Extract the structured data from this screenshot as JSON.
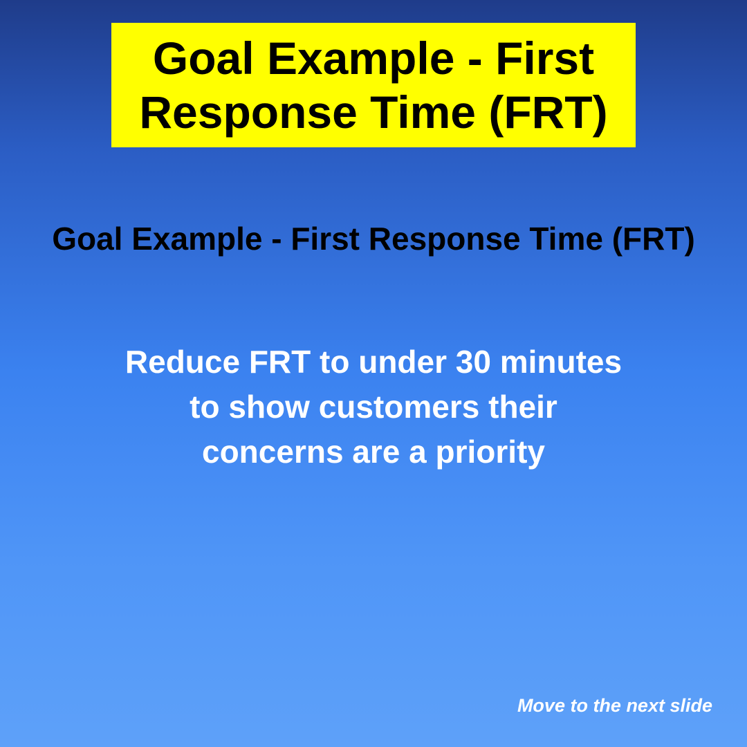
{
  "slide": {
    "title": "Goal Example - First Response Time (FRT)",
    "subtitle": "Goal Example - First Response Time (FRT)",
    "body": "Reduce FRT to under 30 minutes to show customers their concerns are a priority",
    "next_label": "Move to the next slide"
  },
  "colors": {
    "title_background": "#ffff00",
    "background_top": "#1f3c8a",
    "background_bottom": "#5ea1f9"
  }
}
